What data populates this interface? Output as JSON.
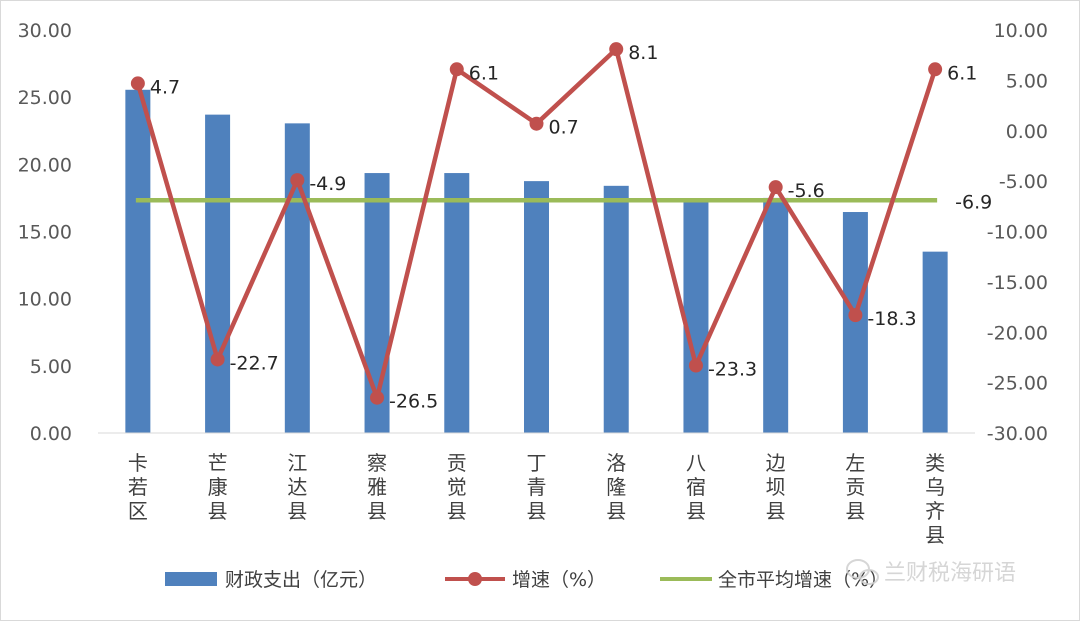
{
  "chart_data": {
    "type": "bar+line",
    "categories": [
      [
        "卡",
        "若",
        "区"
      ],
      [
        "芒",
        "康",
        "县"
      ],
      [
        "江",
        "达",
        "县"
      ],
      [
        "察",
        "雅",
        "县"
      ],
      [
        "贡",
        "觉",
        "县"
      ],
      [
        "丁",
        "青",
        "县"
      ],
      [
        "洛",
        "隆",
        "县"
      ],
      [
        "八",
        "宿",
        "县"
      ],
      [
        "边",
        "坝",
        "县"
      ],
      [
        "左",
        "贡",
        "县"
      ],
      [
        "类",
        "乌",
        "齐",
        "县"
      ]
    ],
    "bar_series": {
      "name": "财政支出（亿元）",
      "color": "#4f81bd",
      "values": [
        25.55,
        23.7,
        23.05,
        19.35,
        19.35,
        18.75,
        18.4,
        17.3,
        17.5,
        16.45,
        13.5
      ]
    },
    "line_series": {
      "name": "增速（%）",
      "color": "#c0504d",
      "values": [
        4.7,
        -22.7,
        -4.9,
        -26.5,
        6.1,
        0.7,
        8.1,
        -23.3,
        -5.6,
        -18.3,
        6.1
      ],
      "labels": [
        "4.7",
        "-22.7",
        "-4.9",
        "-26.5",
        "6.1",
        "0.7",
        "8.1",
        "-23.3",
        "-5.6",
        "-18.3",
        "6.1"
      ]
    },
    "avg_series": {
      "name": "全市平均增速（%）",
      "color": "#9bbb59",
      "value": -6.9,
      "label": "-6.9",
      "label_color": "#ff0000"
    },
    "y_left": {
      "range": [
        0,
        30
      ],
      "ticks": [
        "0.00",
        "5.00",
        "10.00",
        "15.00",
        "20.00",
        "25.00",
        "30.00"
      ],
      "tick_values": [
        0,
        5,
        10,
        15,
        20,
        25,
        30
      ]
    },
    "y_right": {
      "range": [
        -30,
        10
      ],
      "ticks": [
        "-30.00",
        "-25.00",
        "-20.00",
        "-15.00",
        "-10.00",
        "-5.00",
        "0.00",
        "5.00",
        "10.00"
      ],
      "tick_values": [
        -30,
        -25,
        -20,
        -15,
        -10,
        -5,
        0,
        5,
        10
      ]
    },
    "grid": false,
    "legend_position": "bottom"
  },
  "watermark": {
    "text": "兰财税海研语",
    "icon": "wechat-icon"
  }
}
